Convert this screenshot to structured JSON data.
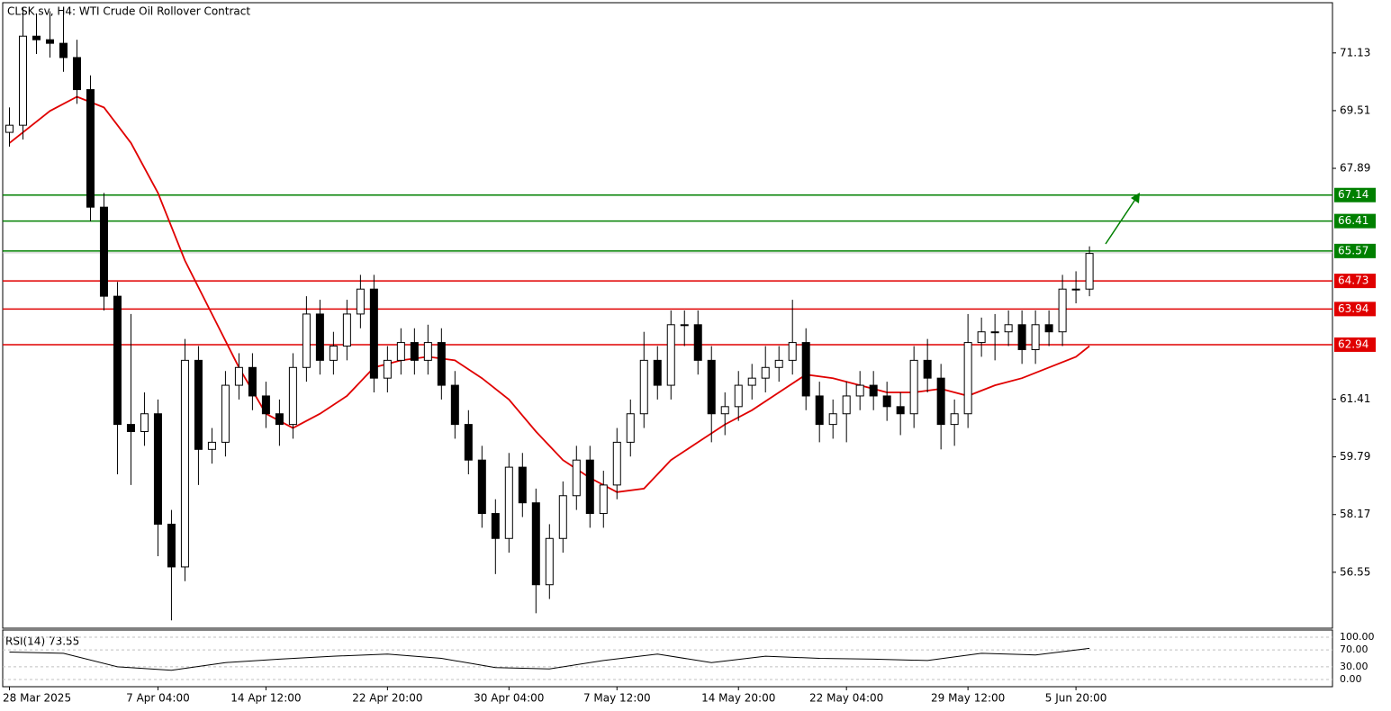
{
  "chart_data": {
    "type": "candlestick",
    "title": "CLSK.sv, H4:  WTI Crude Oil Rollover Contract",
    "xlim": [
      -0.5,
      98
    ],
    "ylim": [
      54.98,
      72.54
    ],
    "yticks": [
      71.13,
      69.51,
      67.89,
      61.41,
      59.79,
      58.17,
      56.55
    ],
    "xticks": [
      {
        "value": 0,
        "label": "28 Mar 2025"
      },
      {
        "value": 11,
        "label": "7 Apr 04:00"
      },
      {
        "value": 19,
        "label": "14 Apr 12:00"
      },
      {
        "value": 28,
        "label": "22 Apr 20:00"
      },
      {
        "value": 37,
        "label": "30 Apr 04:00"
      },
      {
        "value": 45,
        "label": "7 May 12:00"
      },
      {
        "value": 54,
        "label": "14 May 20:00"
      },
      {
        "value": 62,
        "label": "22 May 04:00"
      },
      {
        "value": 71,
        "label": "29 May 12:00"
      },
      {
        "value": 79,
        "label": "5 Jun 20:00"
      }
    ],
    "candles": [
      [
        68.9,
        69.6,
        68.5,
        69.1
      ],
      [
        69.1,
        72.4,
        68.7,
        71.6
      ],
      [
        71.6,
        72.2,
        71.1,
        71.5
      ],
      [
        71.5,
        72.3,
        71.0,
        71.4
      ],
      [
        71.4,
        72.4,
        70.6,
        71.0
      ],
      [
        71.0,
        71.5,
        69.7,
        70.1
      ],
      [
        70.1,
        70.5,
        66.4,
        66.8
      ],
      [
        66.8,
        67.2,
        63.9,
        64.3
      ],
      [
        64.3,
        64.7,
        59.3,
        60.7
      ],
      [
        60.7,
        63.8,
        59.0,
        60.5
      ],
      [
        60.5,
        61.6,
        60.1,
        61.0
      ],
      [
        61.0,
        61.4,
        57.0,
        57.9
      ],
      [
        57.9,
        58.3,
        55.2,
        56.7
      ],
      [
        56.7,
        63.1,
        56.3,
        62.5
      ],
      [
        62.5,
        62.9,
        59.0,
        60.0
      ],
      [
        60.0,
        60.6,
        59.6,
        60.2
      ],
      [
        60.2,
        62.2,
        59.8,
        61.8
      ],
      [
        61.8,
        62.7,
        61.4,
        62.3
      ],
      [
        62.3,
        62.7,
        61.1,
        61.5
      ],
      [
        61.5,
        61.9,
        60.6,
        61.0
      ],
      [
        61.0,
        61.4,
        60.1,
        60.7
      ],
      [
        60.7,
        62.7,
        60.3,
        62.3
      ],
      [
        62.3,
        64.3,
        61.9,
        63.8
      ],
      [
        63.8,
        64.2,
        62.1,
        62.5
      ],
      [
        62.5,
        63.3,
        62.1,
        62.9
      ],
      [
        62.9,
        64.2,
        62.5,
        63.8
      ],
      [
        63.8,
        64.9,
        63.4,
        64.5
      ],
      [
        64.5,
        64.9,
        61.6,
        62.0
      ],
      [
        62.0,
        62.9,
        61.6,
        62.5
      ],
      [
        62.5,
        63.4,
        62.1,
        63.0
      ],
      [
        63.0,
        63.4,
        62.1,
        62.5
      ],
      [
        62.5,
        63.5,
        62.1,
        63.0
      ],
      [
        63.0,
        63.4,
        61.4,
        61.8
      ],
      [
        61.8,
        62.2,
        60.3,
        60.7
      ],
      [
        60.7,
        61.1,
        59.3,
        59.7
      ],
      [
        59.7,
        60.1,
        57.8,
        58.2
      ],
      [
        58.2,
        58.6,
        56.5,
        57.5
      ],
      [
        57.5,
        59.9,
        57.1,
        59.5
      ],
      [
        59.5,
        59.9,
        58.1,
        58.5
      ],
      [
        58.5,
        58.9,
        55.4,
        56.2
      ],
      [
        56.2,
        57.9,
        55.8,
        57.5
      ],
      [
        57.5,
        59.1,
        57.1,
        58.7
      ],
      [
        58.7,
        60.1,
        58.3,
        59.7
      ],
      [
        59.7,
        60.1,
        57.8,
        58.2
      ],
      [
        58.2,
        59.4,
        57.8,
        59.0
      ],
      [
        59.0,
        60.6,
        58.6,
        60.2
      ],
      [
        60.2,
        61.4,
        59.8,
        61.0
      ],
      [
        61.0,
        63.3,
        60.6,
        62.5
      ],
      [
        62.5,
        62.9,
        61.4,
        61.8
      ],
      [
        61.8,
        63.9,
        61.4,
        63.5
      ],
      [
        63.5,
        63.9,
        62.9,
        63.5
      ],
      [
        63.5,
        63.9,
        62.1,
        62.5
      ],
      [
        62.5,
        62.9,
        60.2,
        61.0
      ],
      [
        61.0,
        61.6,
        60.4,
        61.2
      ],
      [
        61.2,
        62.2,
        60.8,
        61.8
      ],
      [
        61.8,
        62.4,
        61.4,
        62.0
      ],
      [
        62.0,
        62.9,
        61.6,
        62.3
      ],
      [
        62.3,
        62.9,
        61.9,
        62.5
      ],
      [
        62.5,
        64.2,
        62.1,
        63.0
      ],
      [
        63.0,
        63.4,
        61.1,
        61.5
      ],
      [
        61.5,
        61.9,
        60.2,
        60.7
      ],
      [
        60.7,
        61.4,
        60.3,
        61.0
      ],
      [
        61.0,
        61.9,
        60.2,
        61.5
      ],
      [
        61.5,
        62.2,
        61.1,
        61.8
      ],
      [
        61.8,
        62.2,
        61.1,
        61.5
      ],
      [
        61.5,
        61.9,
        60.8,
        61.2
      ],
      [
        61.2,
        61.6,
        60.4,
        61.0
      ],
      [
        61.0,
        62.9,
        60.6,
        62.5
      ],
      [
        62.5,
        63.1,
        61.6,
        62.0
      ],
      [
        62.0,
        62.4,
        60.0,
        60.7
      ],
      [
        60.7,
        61.4,
        60.1,
        61.0
      ],
      [
        61.0,
        63.8,
        60.6,
        63.0
      ],
      [
        63.0,
        63.7,
        62.6,
        63.3
      ],
      [
        63.3,
        63.8,
        62.5,
        63.3
      ],
      [
        63.3,
        63.9,
        62.9,
        63.5
      ],
      [
        63.5,
        63.9,
        62.4,
        62.8
      ],
      [
        62.8,
        63.9,
        62.4,
        63.5
      ],
      [
        63.5,
        63.9,
        62.9,
        63.3
      ],
      [
        63.3,
        64.9,
        62.9,
        64.5
      ],
      [
        64.5,
        65.0,
        64.1,
        64.5
      ],
      [
        64.5,
        65.7,
        64.3,
        65.5
      ]
    ],
    "moving_average": {
      "color": "#e00000",
      "x": [
        0,
        3,
        5,
        7,
        9,
        11,
        13,
        15,
        17,
        19,
        21,
        23,
        25,
        27,
        29,
        31,
        33,
        35,
        37,
        39,
        41,
        43,
        45,
        47,
        49,
        51,
        53,
        55,
        57,
        59,
        61,
        63,
        65,
        67,
        69,
        71,
        73,
        75,
        77,
        79,
        80
      ],
      "values": [
        68.6,
        69.5,
        69.9,
        69.6,
        68.6,
        67.2,
        65.3,
        63.8,
        62.3,
        61.0,
        60.6,
        61.0,
        61.5,
        62.3,
        62.5,
        62.6,
        62.5,
        62.0,
        61.4,
        60.5,
        59.7,
        59.2,
        58.8,
        58.9,
        59.7,
        60.2,
        60.7,
        61.1,
        61.6,
        62.1,
        62.0,
        61.8,
        61.6,
        61.6,
        61.7,
        61.5,
        61.8,
        62.0,
        62.3,
        62.6,
        62.9
      ]
    },
    "levels": [
      {
        "value": 67.14,
        "color": "#008000"
      },
      {
        "value": 66.41,
        "color": "#008000"
      },
      {
        "value": 65.57,
        "color": "#008000"
      },
      {
        "value": 64.73,
        "color": "#e00000"
      },
      {
        "value": 63.94,
        "color": "#e00000"
      },
      {
        "value": 62.94,
        "color": "#e00000"
      }
    ],
    "current_price": 65.52,
    "rsi": {
      "title": "RSI(14) 73.55",
      "ylim": [
        0,
        100
      ],
      "yticks": [
        {
          "value": 100,
          "label": "100.00"
        },
        {
          "value": 70,
          "label": "70.00"
        },
        {
          "value": 30,
          "label": "30.00"
        },
        {
          "value": 0,
          "label": "0.00"
        }
      ],
      "x": [
        0,
        4,
        8,
        12,
        16,
        20,
        24,
        28,
        32,
        36,
        40,
        44,
        48,
        52,
        56,
        60,
        64,
        68,
        72,
        76,
        80
      ],
      "values": [
        65,
        62,
        30,
        22,
        40,
        48,
        55,
        60,
        50,
        28,
        25,
        45,
        60,
        40,
        55,
        50,
        48,
        45,
        62,
        58,
        73.55
      ]
    }
  }
}
